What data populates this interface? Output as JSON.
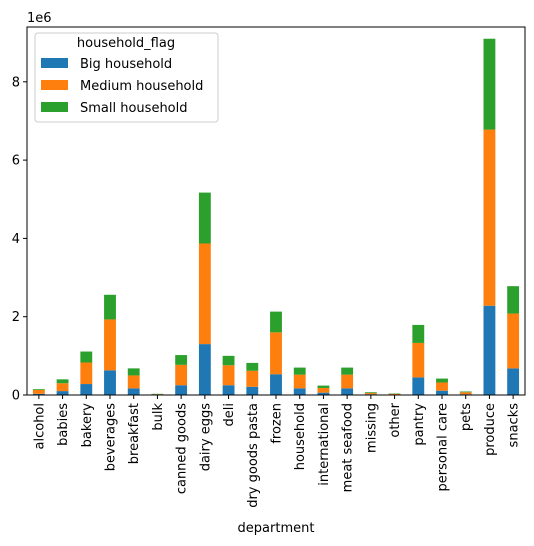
{
  "chart_data": {
    "type": "bar",
    "stacked": true,
    "xlabel": "department",
    "ylabel": "",
    "y_offset_text": "1e6",
    "ylim": [
      0,
      9.4
    ],
    "yticks": [
      0,
      2,
      4,
      6,
      8
    ],
    "grid": false,
    "legend_position": "top-left",
    "legend_title": "household_flag",
    "categories": [
      "alcohol",
      "babies",
      "bakery",
      "beverages",
      "breakfast",
      "bulk",
      "canned goods",
      "dairy eggs",
      "deli",
      "dry goods pasta",
      "frozen",
      "household",
      "international",
      "meat seafood",
      "missing",
      "other",
      "pantry",
      "personal care",
      "pets",
      "produce",
      "snacks"
    ],
    "series": [
      {
        "name": "Big household",
        "color": "#1f77b4",
        "values": [
          0.03,
          0.1,
          0.28,
          0.63,
          0.17,
          0.01,
          0.25,
          1.3,
          0.25,
          0.21,
          0.53,
          0.17,
          0.06,
          0.17,
          0.02,
          0.01,
          0.45,
          0.11,
          0.02,
          2.28,
          0.68
        ]
      },
      {
        "name": "Medium household",
        "color": "#ff7f0e",
        "values": [
          0.1,
          0.2,
          0.55,
          1.3,
          0.33,
          0.01,
          0.52,
          2.57,
          0.51,
          0.41,
          1.07,
          0.35,
          0.12,
          0.35,
          0.03,
          0.02,
          0.88,
          0.21,
          0.05,
          4.5,
          1.4
        ]
      },
      {
        "name": "Small household",
        "color": "#2ca02c",
        "values": [
          0.02,
          0.1,
          0.28,
          0.63,
          0.18,
          0.01,
          0.25,
          1.3,
          0.24,
          0.2,
          0.53,
          0.18,
          0.06,
          0.18,
          0.02,
          0.01,
          0.46,
          0.1,
          0.02,
          2.32,
          0.7
        ]
      }
    ]
  }
}
